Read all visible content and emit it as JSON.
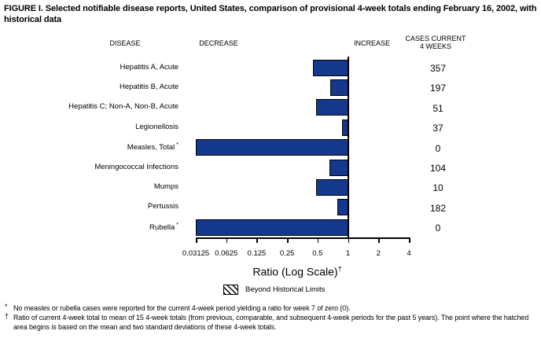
{
  "title": "FIGURE I. Selected notifiable disease reports, United States, comparison of provisional 4-week totals ending February 16, 2002, with historical data",
  "headers": {
    "disease": "DISEASE",
    "decrease": "DECREASE",
    "increase": "INCREASE",
    "cases_line1": "CASES CURRENT",
    "cases_line2": "4 WEEKS"
  },
  "chart_data": {
    "type": "bar",
    "orientation": "horizontal",
    "scale": "log2",
    "baseline_ratio": 1,
    "xlim": [
      0.03125,
      4
    ],
    "axis_tick_labels": [
      "0.03125",
      "0.0625",
      "0.125",
      "0.25",
      "0.5",
      "1",
      "2",
      "4"
    ],
    "xlabel": "Ratio (Log Scale)",
    "xlabel_superscript": "†",
    "rows": [
      {
        "disease": "Hepatitis A, Acute",
        "superscript": "",
        "ratio": 0.45,
        "cases": "357"
      },
      {
        "disease": "Hepatitis B, Acute",
        "superscript": "",
        "ratio": 0.66,
        "cases": "197"
      },
      {
        "disease": "Hepatitis C; Non-A, Non-B, Acute",
        "superscript": "",
        "ratio": 0.48,
        "cases": "51"
      },
      {
        "disease": "Legionellosis",
        "superscript": "",
        "ratio": 0.86,
        "cases": "37"
      },
      {
        "disease": "Measles, Total",
        "superscript": "*",
        "ratio": 0,
        "cases": "0"
      },
      {
        "disease": "Meningococcal Infections",
        "superscript": "",
        "ratio": 0.65,
        "cases": "104"
      },
      {
        "disease": "Mumps",
        "superscript": "",
        "ratio": 0.48,
        "cases": "10"
      },
      {
        "disease": "Pertussis",
        "superscript": "",
        "ratio": 0.78,
        "cases": "182"
      },
      {
        "disease": "Rubella",
        "superscript": "*",
        "ratio": 0,
        "cases": "0"
      }
    ],
    "legend": {
      "label": "Beyond Historical Limits",
      "swatch": "diagonal-hatch"
    }
  },
  "footnotes": [
    {
      "marker": "*",
      "text": "No measles or rubella cases were reported for the current 4-week period yielding a ratio for week 7 of zero (0)."
    },
    {
      "marker": "†",
      "text": "Ratio of current 4-week total to mean of 15 4-week totals (from previous, comparable, and subsequent 4-week periods for the past 5 years). The point where the hatched area begins is based on the mean and two standard deviations of these 4-week totals."
    }
  ],
  "colors": {
    "bar_fill": "#14398C",
    "bar_border": "#000000",
    "text": "#000000",
    "background": "#FFFFFF"
  }
}
